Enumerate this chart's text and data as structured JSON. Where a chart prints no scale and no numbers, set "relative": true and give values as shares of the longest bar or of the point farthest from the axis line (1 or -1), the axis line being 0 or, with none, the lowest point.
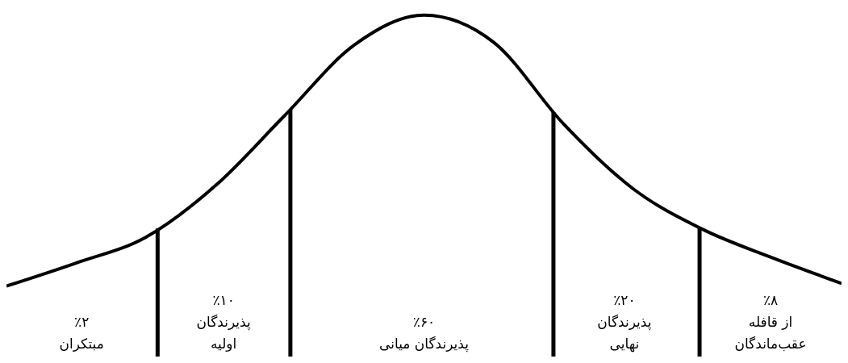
{
  "chart_data": {
    "type": "line",
    "relative": true,
    "categories": [
      null,
      null,
      null,
      null,
      null,
      null,
      null,
      null,
      null,
      null,
      null,
      null,
      null
    ],
    "series": [
      {
        "color": "#000000",
        "values": [
          0,
          0.085,
          0.18,
          0.37,
          0.63,
          0.89,
          1,
          0.9,
          0.6,
          0.36,
          0.21,
          0.105,
          0.01
        ]
      }
    ],
    "annotations": [
      "٪۲\nمبتکران",
      "٪۱۰\nپذیرندگان\nاولیه",
      "٪۶۰\nپذیرندگان میانی",
      "٪۲۰\nپذیرندگان\nنهایی",
      "٪۸\nاز قافله\nعقب‌ماندگان"
    ]
  }
}
